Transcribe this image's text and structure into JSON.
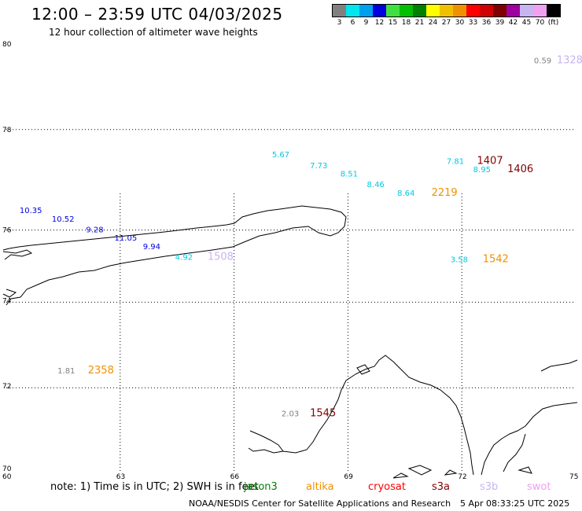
{
  "header": {
    "title": "12:00 – 23:59 UTC 04/03/2025",
    "subtitle": "12 hour collection of altimeter wave heights"
  },
  "legend": {
    "bins": [
      {
        "label": "3",
        "color": "#808080"
      },
      {
        "label": "6",
        "color": "#00e5ee"
      },
      {
        "label": "9",
        "color": "#00a0f0"
      },
      {
        "label": "12",
        "color": "#0000e0"
      },
      {
        "label": "15",
        "color": "#40e040"
      },
      {
        "label": "18",
        "color": "#00c000"
      },
      {
        "label": "21",
        "color": "#008000"
      },
      {
        "label": "24",
        "color": "#ffff00"
      },
      {
        "label": "27",
        "color": "#f0c000"
      },
      {
        "label": "30",
        "color": "#f09000"
      },
      {
        "label": "33",
        "color": "#ff0000"
      },
      {
        "label": "36",
        "color": "#d00000"
      },
      {
        "label": "39",
        "color": "#800000"
      },
      {
        "label": "42",
        "color": "#a000a0"
      },
      {
        "label": "45",
        "color": "#c8b4f0"
      },
      {
        "label": "70",
        "color": "#f0a0f0"
      },
      {
        "label": "(ft)",
        "color": "#000000"
      }
    ]
  },
  "map": {
    "lat_range": [
      70,
      80
    ],
    "lon_range": [
      60,
      75
    ],
    "lat_labels": [
      "80",
      "78",
      "76",
      "74",
      "72",
      "70"
    ],
    "lon_labels": [
      "60",
      "63",
      "66",
      "69",
      "72",
      "75"
    ],
    "observations": [
      {
        "text": "0.59",
        "color": "#808080",
        "lat": 79.55,
        "lon": 73.9
      },
      {
        "text": "1328",
        "color": "#c8b4f0",
        "lat": 79.55,
        "lon": 74.5
      },
      {
        "text": "5.67",
        "color": "#00c8e0",
        "lat": 77.35,
        "lon": 67.0
      },
      {
        "text": "7.73",
        "color": "#00c8e0",
        "lat": 77.1,
        "lon": 68.0
      },
      {
        "text": "7.81",
        "color": "#00c8e0",
        "lat": 77.2,
        "lon": 71.6
      },
      {
        "text": "1407",
        "color": "#800000",
        "lat": 77.2,
        "lon": 72.4
      },
      {
        "text": "8.51",
        "color": "#00c8e0",
        "lat": 76.9,
        "lon": 68.8
      },
      {
        "text": "8.95",
        "color": "#00c8e0",
        "lat": 77.0,
        "lon": 72.3
      },
      {
        "text": "1406",
        "color": "#800000",
        "lat": 77.0,
        "lon": 73.2
      },
      {
        "text": "8.46",
        "color": "#00c8e0",
        "lat": 76.65,
        "lon": 69.5
      },
      {
        "text": "8.64",
        "color": "#00c8e0",
        "lat": 76.45,
        "lon": 70.3
      },
      {
        "text": "2219",
        "color": "#f09000",
        "lat": 76.45,
        "lon": 71.2
      },
      {
        "text": "10.35",
        "color": "#0000e0",
        "lat": 76.05,
        "lon": 60.35
      },
      {
        "text": "10.52",
        "color": "#0000e0",
        "lat": 75.85,
        "lon": 61.2
      },
      {
        "text": "9.28",
        "color": "#0000e0",
        "lat": 75.6,
        "lon": 62.1
      },
      {
        "text": "11.05",
        "color": "#0000e0",
        "lat": 75.4,
        "lon": 62.85
      },
      {
        "text": "9.94",
        "color": "#0000e0",
        "lat": 75.2,
        "lon": 63.6
      },
      {
        "text": "4.92",
        "color": "#00c8e0",
        "lat": 74.95,
        "lon": 64.45
      },
      {
        "text": "1508",
        "color": "#c8b4f0",
        "lat": 74.95,
        "lon": 65.3
      },
      {
        "text": "3.58",
        "color": "#00c8e0",
        "lat": 74.9,
        "lon": 71.7
      },
      {
        "text": "1542",
        "color": "#f09000",
        "lat": 74.9,
        "lon": 72.55
      },
      {
        "text": "1.81",
        "color": "#808080",
        "lat": 72.3,
        "lon": 61.35
      },
      {
        "text": "2358",
        "color": "#f09000",
        "lat": 72.3,
        "lon": 62.15
      },
      {
        "text": "2.03",
        "color": "#808080",
        "lat": 71.3,
        "lon": 67.25
      },
      {
        "text": "1545",
        "color": "#800000",
        "lat": 71.3,
        "lon": 68.0
      }
    ]
  },
  "footer": {
    "note": "note:  1) Time is in UTC;  2) SWH is in feet",
    "satellites": [
      {
        "name": "jason3",
        "color": "#008000"
      },
      {
        "name": "altika",
        "color": "#f09000"
      },
      {
        "name": "cryosat",
        "color": "#ff0000"
      },
      {
        "name": "s3a",
        "color": "#800000"
      },
      {
        "name": "s3b",
        "color": "#c8b4f0"
      },
      {
        "name": "swot",
        "color": "#f0a0f0"
      }
    ],
    "credit": "NOAA/NESDIS Center for Satellite Applications and Research",
    "timestamp": "5 Apr 08:33:25 UTC 2025"
  }
}
